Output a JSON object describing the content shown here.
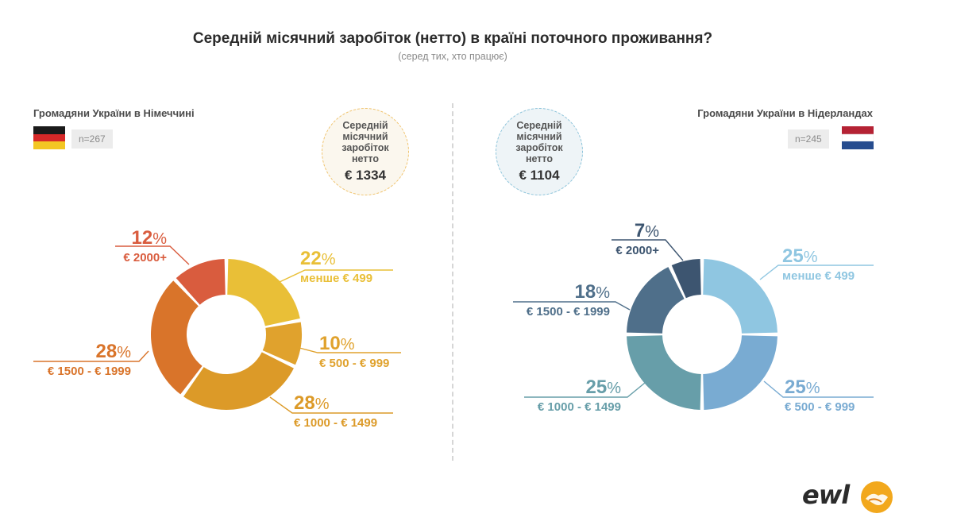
{
  "title": "Середній місячний заробіток (нетто) в країні поточного проживання?",
  "subtitle": "(серед тих, хто працює)",
  "groups": {
    "germany": {
      "label": "Громадяни України в Німеччині",
      "n": "n=267",
      "avg_label": "Середній місячний заробіток нетто",
      "avg_value": "€ 1334"
    },
    "netherlands": {
      "label": "Громадяни України в Нідерландах",
      "n": "n=245",
      "avg_label": "Середній місячний заробіток нетто",
      "avg_value": "€ 1104"
    }
  },
  "logo": "ewl",
  "chart_data": [
    {
      "type": "pie",
      "title": "Громадяни України в Німеччині",
      "n": "n=267",
      "categories": [
        "менше € 499",
        "€ 500 - € 999",
        "€ 1000 - € 1499",
        "€ 1500 - € 1999",
        "€ 2000+"
      ],
      "values": [
        22,
        10,
        28,
        28,
        12
      ],
      "labels": [
        "22",
        "10",
        "28",
        "28",
        "12"
      ],
      "unit": "%",
      "colors": [
        "#e9bf37",
        "#e0a22d",
        "#dc9a28",
        "#d9742a",
        "#d95c3e"
      ]
    },
    {
      "type": "pie",
      "title": "Громадяни України в Нідерландах",
      "n": "n=245",
      "categories": [
        "менше € 499",
        "€ 500 - € 999",
        "€ 1000 - € 1499",
        "€ 1500 - € 1999",
        "€ 2000+"
      ],
      "values": [
        25,
        25,
        25,
        18,
        7
      ],
      "labels": [
        "25",
        "25",
        "25",
        "18",
        "7"
      ],
      "unit": "%",
      "colors": [
        "#8fc6e1",
        "#79abd2",
        "#679ea9",
        "#4f6f8a",
        "#3d5570"
      ]
    }
  ]
}
